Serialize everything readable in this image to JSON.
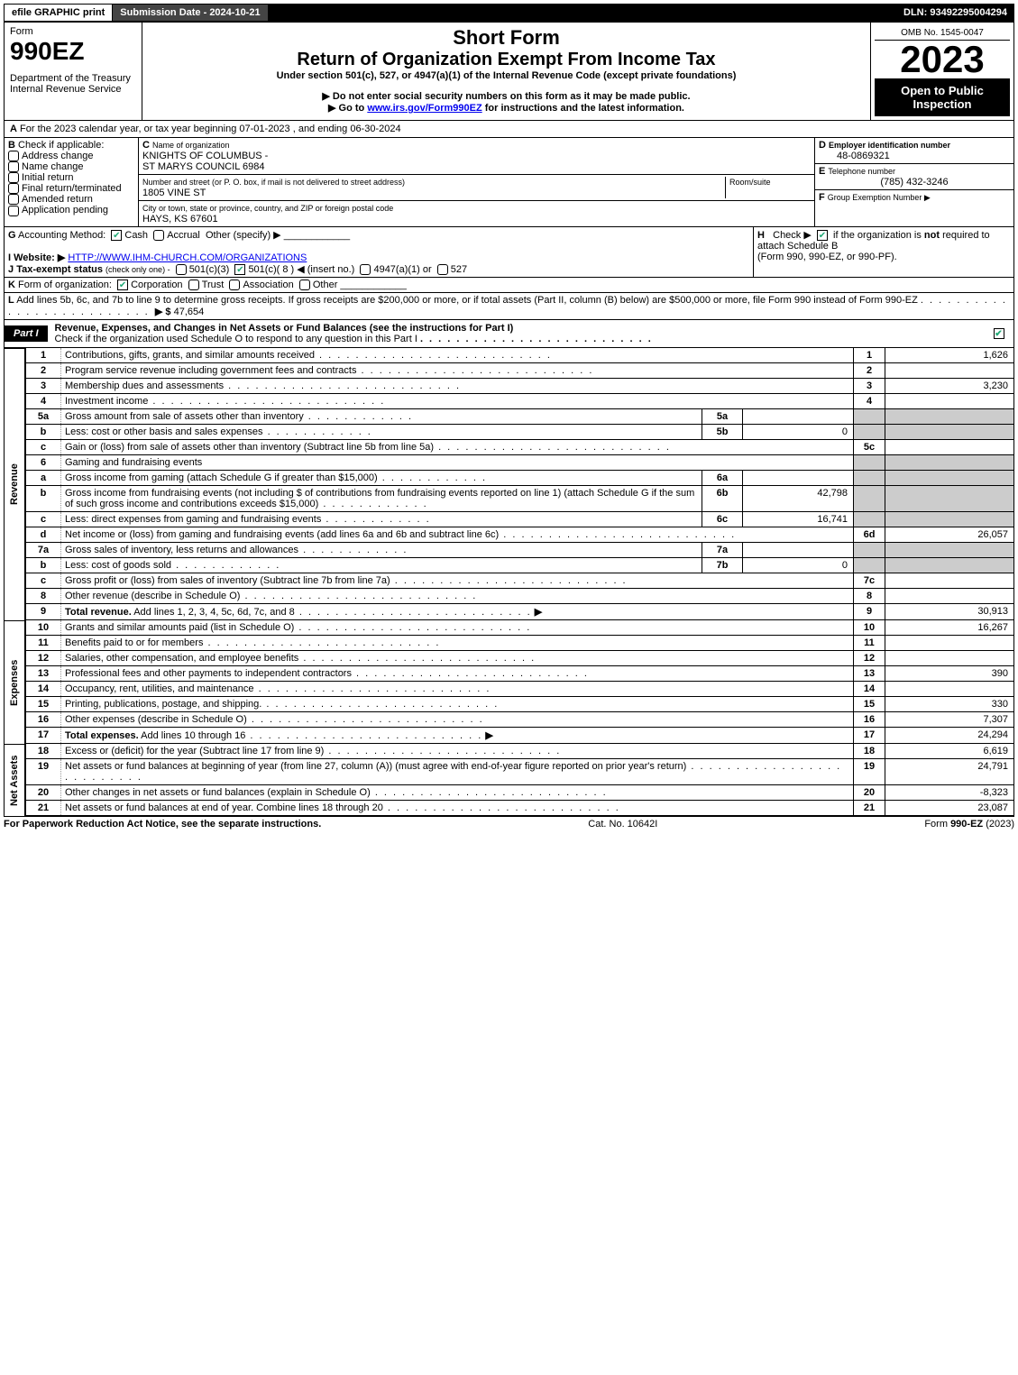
{
  "topbar": {
    "efile": "efile GRAPHIC print",
    "submission": "Submission Date - 2024-10-21",
    "dln": "DLN: 93492295004294"
  },
  "header": {
    "form_label": "Form",
    "form_no": "990EZ",
    "dept": "Department of the Treasury",
    "irs": "Internal Revenue Service",
    "short_form": "Short Form",
    "title": "Return of Organization Exempt From Income Tax",
    "subtitle": "Under section 501(c), 527, or 4947(a)(1) of the Internal Revenue Code (except private foundations)",
    "warn": "▶ Do not enter social security numbers on this form as it may be made public.",
    "goto": "▶ Go to www.irs.gov/Form990EZ for instructions and the latest information.",
    "omb": "OMB No. 1545-0047",
    "year": "2023",
    "open": "Open to Public Inspection"
  },
  "A": {
    "label": "A",
    "text": "For the 2023 calendar year, or tax year beginning 07-01-2023 , and ending 06-30-2024"
  },
  "B": {
    "label": "B",
    "title": "Check if applicable:",
    "items": [
      "Address change",
      "Name change",
      "Initial return",
      "Final return/terminated",
      "Amended return",
      "Application pending"
    ]
  },
  "C": {
    "label": "C",
    "title": "Name of organization",
    "name1": "KNIGHTS OF COLUMBUS -",
    "name2": "ST MARYS COUNCIL 6984",
    "addr_label": "Number and street (or P. O. box, if mail is not delivered to street address)",
    "room_label": "Room/suite",
    "addr": "1805 VINE ST",
    "city_label": "City or town, state or province, country, and ZIP or foreign postal code",
    "city": "HAYS, KS  67601"
  },
  "D": {
    "label": "D",
    "title": "Employer identification number",
    "value": "48-0869321"
  },
  "E": {
    "label": "E",
    "title": "Telephone number",
    "value": "(785) 432-3246"
  },
  "F": {
    "label": "F",
    "title": "Group Exemption Number   ▶"
  },
  "G": {
    "label": "G",
    "title": "Accounting Method:",
    "cash": "Cash",
    "accrual": "Accrual",
    "other": "Other (specify) ▶"
  },
  "H": {
    "label": "H",
    "text1": "Check ▶",
    "text2": "if the organization is not required to attach Schedule B",
    "text3": "(Form 990, 990-EZ, or 990-PF)."
  },
  "I": {
    "label": "I",
    "title": "Website: ▶",
    "value": "HTTP://WWW.IHM-CHURCH.COM/ORGANIZATIONS"
  },
  "J": {
    "label": "J",
    "title": "Tax-exempt status",
    "note": "(check only one) -",
    "opts": [
      "501(c)(3)",
      "501(c)( 8 ) ◀ (insert no.)",
      "4947(a)(1) or",
      "527"
    ]
  },
  "K": {
    "label": "K",
    "title": "Form of organization:",
    "opts": [
      "Corporation",
      "Trust",
      "Association",
      "Other"
    ]
  },
  "L": {
    "label": "L",
    "text": "Add lines 5b, 6c, and 7b to line 9 to determine gross receipts. If gross receipts are $200,000 or more, or if total assets (Part II, column (B) below) are $500,000 or more, file Form 990 instead of Form 990-EZ",
    "arrow": "▶ $",
    "value": "47,654"
  },
  "part1": {
    "label": "Part I",
    "title": "Revenue, Expenses, and Changes in Net Assets or Fund Balances (see the instructions for Part I)",
    "check_note": "Check if the organization used Schedule O to respond to any question in this Part I"
  },
  "sections": {
    "revenue": "Revenue",
    "expenses": "Expenses",
    "netassets": "Net Assets"
  },
  "lines": {
    "1": {
      "n": "1",
      "d": "Contributions, gifts, grants, and similar amounts received",
      "r": "1",
      "v": "1,626"
    },
    "2": {
      "n": "2",
      "d": "Program service revenue including government fees and contracts",
      "r": "2",
      "v": ""
    },
    "3": {
      "n": "3",
      "d": "Membership dues and assessments",
      "r": "3",
      "v": "3,230"
    },
    "4": {
      "n": "4",
      "d": "Investment income",
      "r": "4",
      "v": ""
    },
    "5a": {
      "n": "5a",
      "d": "Gross amount from sale of assets other than inventory",
      "sb": "5a",
      "sv": ""
    },
    "5b": {
      "n": "b",
      "d": "Less: cost or other basis and sales expenses",
      "sb": "5b",
      "sv": "0"
    },
    "5c": {
      "n": "c",
      "d": "Gain or (loss) from sale of assets other than inventory (Subtract line 5b from line 5a)",
      "r": "5c",
      "v": ""
    },
    "6": {
      "n": "6",
      "d": "Gaming and fundraising events"
    },
    "6a": {
      "n": "a",
      "d": "Gross income from gaming (attach Schedule G if greater than $15,000)",
      "sb": "6a",
      "sv": ""
    },
    "6b": {
      "n": "b",
      "d1": "Gross income from fundraising events (not including $",
      "d2": "of contributions from fundraising events reported on line 1) (attach Schedule G if the sum of such gross income and contributions exceeds $15,000)",
      "sb": "6b",
      "sv": "42,798"
    },
    "6c": {
      "n": "c",
      "d": "Less: direct expenses from gaming and fundraising events",
      "sb": "6c",
      "sv": "16,741"
    },
    "6d": {
      "n": "d",
      "d": "Net income or (loss) from gaming and fundraising events (add lines 6a and 6b and subtract line 6c)",
      "r": "6d",
      "v": "26,057"
    },
    "7a": {
      "n": "7a",
      "d": "Gross sales of inventory, less returns and allowances",
      "sb": "7a",
      "sv": ""
    },
    "7b": {
      "n": "b",
      "d": "Less: cost of goods sold",
      "sb": "7b",
      "sv": "0"
    },
    "7c": {
      "n": "c",
      "d": "Gross profit or (loss) from sales of inventory (Subtract line 7b from line 7a)",
      "r": "7c",
      "v": ""
    },
    "8": {
      "n": "8",
      "d": "Other revenue (describe in Schedule O)",
      "r": "8",
      "v": ""
    },
    "9": {
      "n": "9",
      "d": "Total revenue. Add lines 1, 2, 3, 4, 5c, 6d, 7c, and 8",
      "r": "9",
      "v": "30,913",
      "arrow": "▶",
      "bold": true
    },
    "10": {
      "n": "10",
      "d": "Grants and similar amounts paid (list in Schedule O)",
      "r": "10",
      "v": "16,267"
    },
    "11": {
      "n": "11",
      "d": "Benefits paid to or for members",
      "r": "11",
      "v": ""
    },
    "12": {
      "n": "12",
      "d": "Salaries, other compensation, and employee benefits",
      "r": "12",
      "v": ""
    },
    "13": {
      "n": "13",
      "d": "Professional fees and other payments to independent contractors",
      "r": "13",
      "v": "390"
    },
    "14": {
      "n": "14",
      "d": "Occupancy, rent, utilities, and maintenance",
      "r": "14",
      "v": ""
    },
    "15": {
      "n": "15",
      "d": "Printing, publications, postage, and shipping.",
      "r": "15",
      "v": "330"
    },
    "16": {
      "n": "16",
      "d": "Other expenses (describe in Schedule O)",
      "r": "16",
      "v": "7,307"
    },
    "17": {
      "n": "17",
      "d": "Total expenses. Add lines 10 through 16",
      "r": "17",
      "v": "24,294",
      "arrow": "▶",
      "bold": true
    },
    "18": {
      "n": "18",
      "d": "Excess or (deficit) for the year (Subtract line 17 from line 9)",
      "r": "18",
      "v": "6,619"
    },
    "19": {
      "n": "19",
      "d": "Net assets or fund balances at beginning of year (from line 27, column (A)) (must agree with end-of-year figure reported on prior year's return)",
      "r": "19",
      "v": "24,791"
    },
    "20": {
      "n": "20",
      "d": "Other changes in net assets or fund balances (explain in Schedule O)",
      "r": "20",
      "v": "-8,323"
    },
    "21": {
      "n": "21",
      "d": "Net assets or fund balances at end of year. Combine lines 18 through 20",
      "r": "21",
      "v": "23,087"
    }
  },
  "footer": {
    "left": "For Paperwork Reduction Act Notice, see the separate instructions.",
    "mid": "Cat. No. 10642I",
    "right": "Form 990-EZ (2023)"
  }
}
